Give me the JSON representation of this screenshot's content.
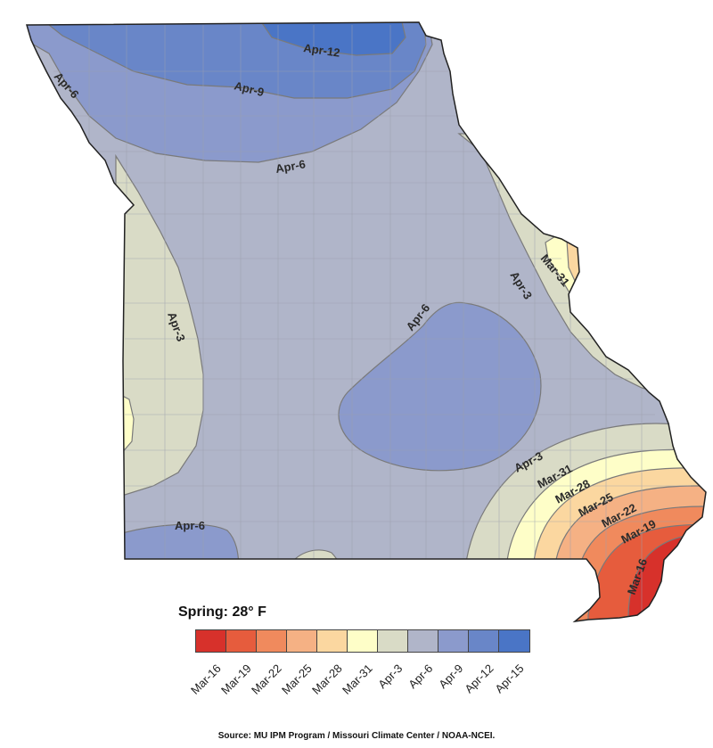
{
  "colors": {
    "background": "#ffffff",
    "state_base": "#b0b5c9",
    "county_line": "#9c9fae",
    "contour_line": "#7a7a7a"
  },
  "map": {
    "contour_labels": [
      "Apr-12",
      "Apr-9",
      "Apr-6",
      "Apr-6",
      "Apr-3",
      "Mar-31",
      "Apr-3",
      "Apr-6",
      "Apr-3",
      "Mar-31",
      "Mar-28",
      "Mar-25",
      "Mar-22",
      "Mar-19",
      "Mar-16",
      "Apr-6"
    ]
  },
  "legend": {
    "title": "Spring: 28° F",
    "labels": [
      "Mar-16",
      "Mar-19",
      "Mar-22",
      "Mar-25",
      "Mar-28",
      "Mar-31",
      "Apr-3",
      "Apr-6",
      "Apr-9",
      "Apr-12",
      "Apr-15"
    ],
    "colors": [
      "#d7312b",
      "#e65c3d",
      "#f08a5d",
      "#f5b184",
      "#fbd7a0",
      "#fefec8",
      "#d9dbc6",
      "#b0b5c9",
      "#8b9acc",
      "#6986c8",
      "#4a75c6"
    ]
  },
  "source": "Source: MU IPM Program / Missouri Climate Center / NOAA-NCEI."
}
